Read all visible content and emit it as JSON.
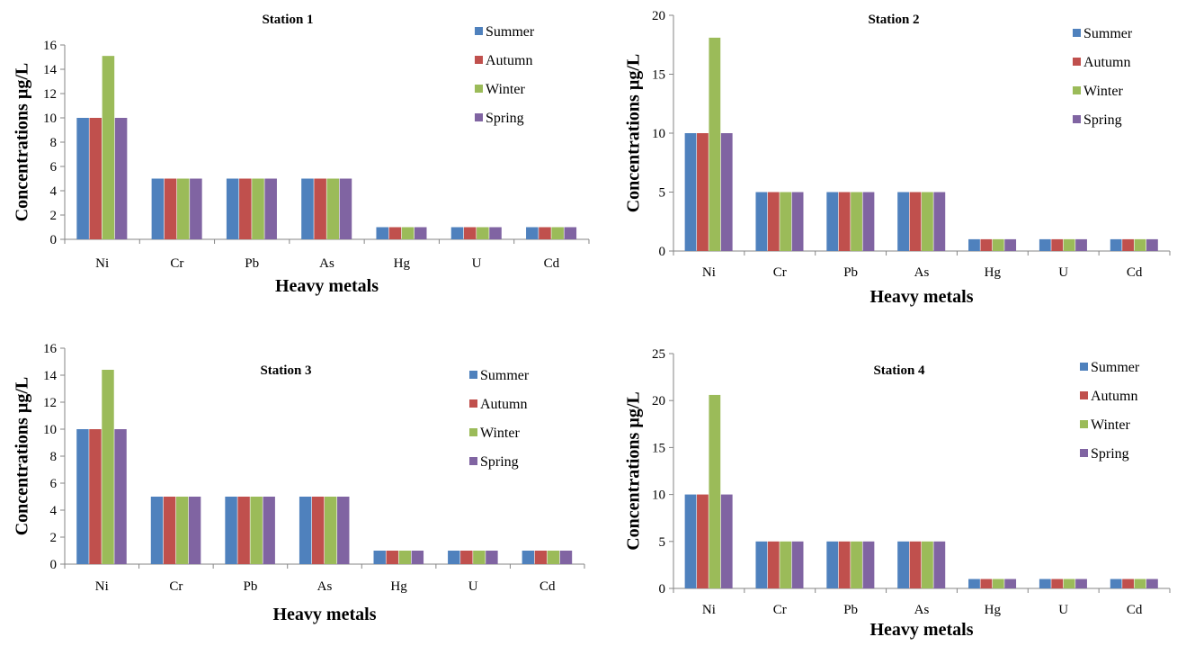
{
  "chart_data": [
    {
      "type": "bar",
      "title": "Station 1",
      "xlabel": "Heavy metals",
      "ylabel": "Concentrations µg/L",
      "ylim": [
        0,
        16
      ],
      "yticks": [
        0,
        2,
        4,
        6,
        8,
        10,
        12,
        14,
        16
      ],
      "categories": [
        "Ni",
        "Cr",
        "Pb",
        "As",
        "Hg",
        "U",
        "Cd"
      ],
      "legend_position": "top-right",
      "grid": false,
      "series": [
        {
          "name": "Summer",
          "color": "#4F81BD",
          "values": [
            10,
            5,
            5,
            5,
            1,
            1,
            1
          ]
        },
        {
          "name": "Autumn",
          "color": "#C0504D",
          "values": [
            10,
            5,
            5,
            5,
            1,
            1,
            1
          ]
        },
        {
          "name": "Winter",
          "color": "#9BBB59",
          "values": [
            15.1,
            5,
            5,
            5,
            1,
            1,
            1
          ]
        },
        {
          "name": "Spring",
          "color": "#8064A2",
          "values": [
            10,
            5,
            5,
            5,
            1,
            1,
            1
          ]
        }
      ]
    },
    {
      "type": "bar",
      "title": "Station 2",
      "xlabel": "Heavy metals",
      "ylabel": "Concentrations µg/L",
      "ylim": [
        0,
        20
      ],
      "yticks": [
        0,
        5,
        10,
        15,
        20
      ],
      "categories": [
        "Ni",
        "Cr",
        "Pb",
        "As",
        "Hg",
        "U",
        "Cd"
      ],
      "legend_position": "top-right",
      "grid": false,
      "series": [
        {
          "name": "Summer",
          "color": "#4F81BD",
          "values": [
            10,
            5,
            5,
            5,
            1,
            1,
            1
          ]
        },
        {
          "name": "Autumn",
          "color": "#C0504D",
          "values": [
            10,
            5,
            5,
            5,
            1,
            1,
            1
          ]
        },
        {
          "name": "Winter",
          "color": "#9BBB59",
          "values": [
            18.1,
            5,
            5,
            5,
            1,
            1,
            1
          ]
        },
        {
          "name": "Spring",
          "color": "#8064A2",
          "values": [
            10,
            5,
            5,
            5,
            1,
            1,
            1
          ]
        }
      ]
    },
    {
      "type": "bar",
      "title": "Station 3",
      "xlabel": "Heavy metals",
      "ylabel": "Concentrations µg/L",
      "ylim": [
        0,
        16
      ],
      "yticks": [
        0,
        2,
        4,
        6,
        8,
        10,
        12,
        14,
        16
      ],
      "categories": [
        "Ni",
        "Cr",
        "Pb",
        "As",
        "Hg",
        "U",
        "Cd"
      ],
      "legend_position": "top-right",
      "grid": false,
      "series": [
        {
          "name": "Summer",
          "color": "#4F81BD",
          "values": [
            10,
            5,
            5,
            5,
            1,
            1,
            1
          ]
        },
        {
          "name": "Autumn",
          "color": "#C0504D",
          "values": [
            10,
            5,
            5,
            5,
            1,
            1,
            1
          ]
        },
        {
          "name": "Winter",
          "color": "#9BBB59",
          "values": [
            14.4,
            5,
            5,
            5,
            1,
            1,
            1
          ]
        },
        {
          "name": "Spring",
          "color": "#8064A2",
          "values": [
            10,
            5,
            5,
            5,
            1,
            1,
            1
          ]
        }
      ]
    },
    {
      "type": "bar",
      "title": "Station 4",
      "xlabel": "Heavy metals",
      "ylabel": "Concentrations µg/L",
      "ylim": [
        0,
        25
      ],
      "yticks": [
        0,
        5,
        10,
        15,
        20,
        25
      ],
      "categories": [
        "Ni",
        "Cr",
        "Pb",
        "As",
        "Hg",
        "U",
        "Cd"
      ],
      "legend_position": "top-right",
      "grid": false,
      "series": [
        {
          "name": "Summer",
          "color": "#4F81BD",
          "values": [
            10,
            5,
            5,
            5,
            1,
            1,
            1
          ]
        },
        {
          "name": "Autumn",
          "color": "#C0504D",
          "values": [
            10,
            5,
            5,
            5,
            1,
            1,
            1
          ]
        },
        {
          "name": "Winter",
          "color": "#9BBB59",
          "values": [
            20.6,
            5,
            5,
            5,
            1,
            1,
            1
          ]
        },
        {
          "name": "Spring",
          "color": "#8064A2",
          "values": [
            10,
            5,
            5,
            5,
            1,
            1,
            1
          ]
        }
      ]
    }
  ]
}
